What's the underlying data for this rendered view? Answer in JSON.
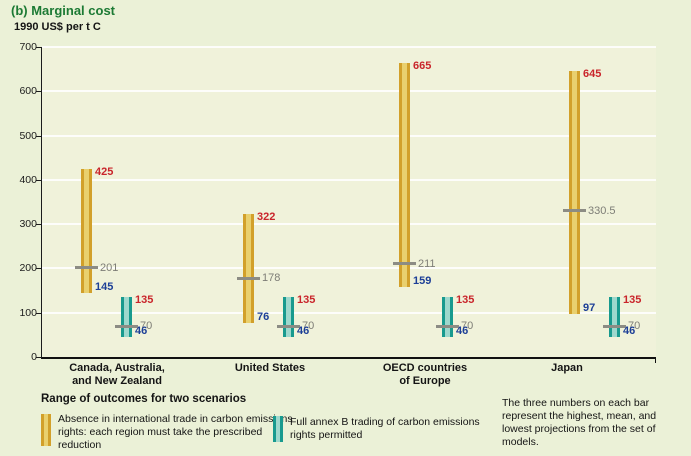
{
  "header": {
    "title": "(b) Marginal cost",
    "units_label": "1990 US$ per t C"
  },
  "chart_data": {
    "type": "bar",
    "subtype": "floating-range-bars",
    "title": "(b) Marginal cost",
    "ylabel": "1990 US$ per t C",
    "xlabel": "",
    "ylim": [
      0,
      700
    ],
    "ytick_step": 100,
    "grid": true,
    "legend_position": "bottom",
    "categories": [
      [
        "Canada, Australia,",
        "and New Zealand"
      ],
      [
        "United States"
      ],
      [
        "OECD countries",
        "of Europe"
      ],
      [
        "Japan"
      ]
    ],
    "series": [
      {
        "name": "Absence in international trade in carbon emissions rights: each region must take the prescribed reduction",
        "stripe_color": "#d2a02a",
        "fill_color": "#e9d06e",
        "values": [
          {
            "high": 425,
            "mean": 201,
            "low": 145
          },
          {
            "high": 322,
            "mean": 178,
            "low": 76
          },
          {
            "high": 665,
            "mean": 211,
            "low": 159
          },
          {
            "high": 645,
            "mean": 330.5,
            "low": 97
          }
        ]
      },
      {
        "name": "Full annex B trading of carbon emissions rights permitted",
        "stripe_color": "#189a8e",
        "fill_color": "#9ed8cd",
        "values": [
          {
            "high": 135,
            "mean": 70,
            "low": 46
          },
          {
            "high": 135,
            "mean": 70,
            "low": 46
          },
          {
            "high": 135,
            "mean": 70,
            "low": 46
          },
          {
            "high": 135,
            "mean": 70,
            "low": 46
          }
        ]
      }
    ],
    "value_label_colors": {
      "high": "#c9252b",
      "mean": "#7d7d76",
      "low": "#1d3f97"
    },
    "mean_marker_color": "#8c8c84"
  },
  "legend": {
    "heading": "Range of outcomes for two scenarios",
    "items": [
      {
        "swatch": "gold-range-swatch",
        "label": "Absence in international trade in carbon emissions rights: each region must take the prescribed reduction"
      },
      {
        "swatch": "teal-range-swatch",
        "label": "Full annex B trading of carbon emissions rights permitted"
      }
    ]
  },
  "note": "The three numbers on each bar represent the highest, mean, and lowest projections from the set of models."
}
